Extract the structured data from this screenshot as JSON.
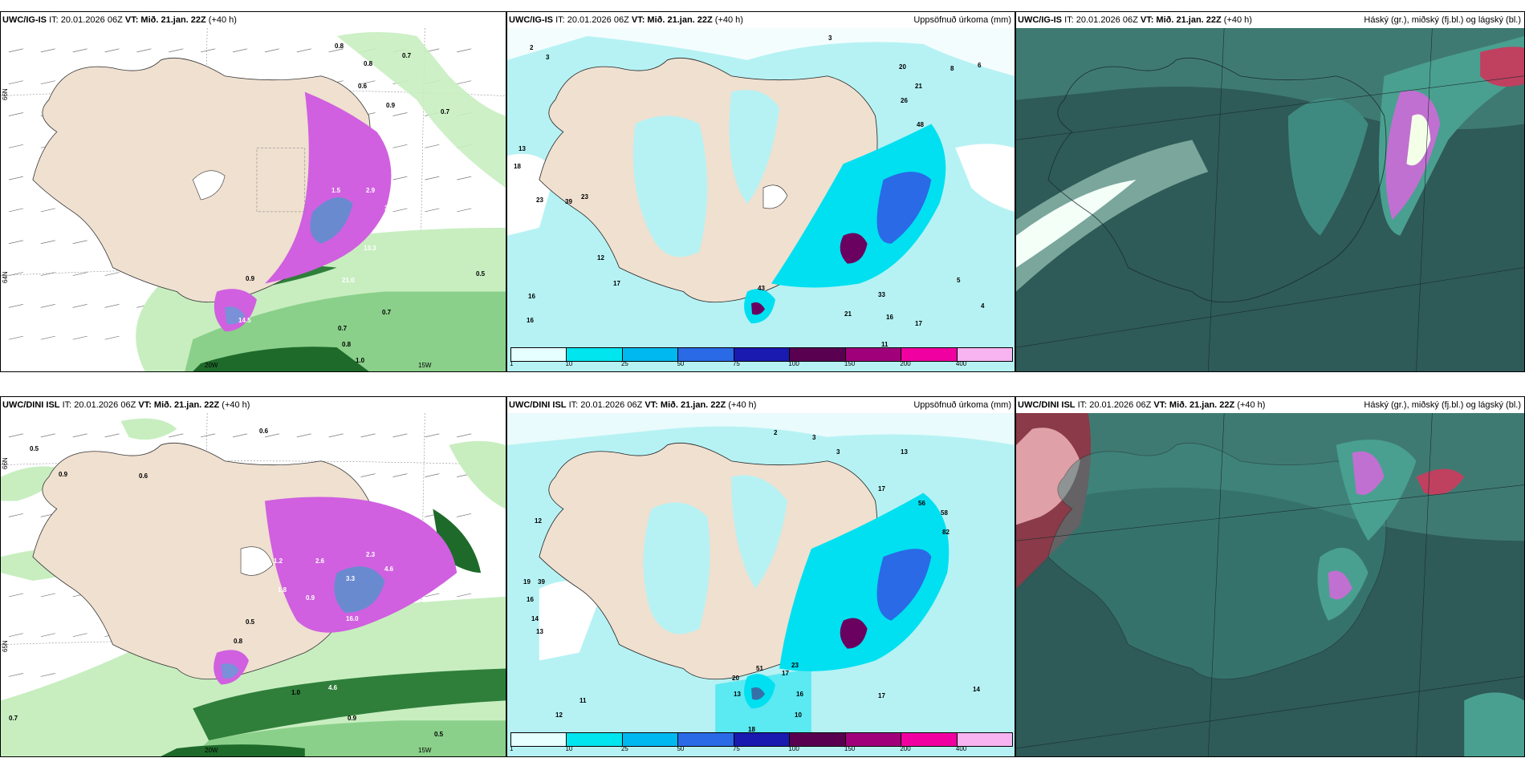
{
  "panels": {
    "top_left": {
      "model": "UWC/IG-IS",
      "it": "IT: 20.01.2026 06Z",
      "vt_label": "VT:",
      "vt": "Mið. 21.jan. 22Z",
      "lead": "(+40 h)",
      "right_title": ""
    },
    "top_mid": {
      "model": "UWC/IG-IS",
      "it": "IT: 20.01.2026 06Z",
      "vt_label": "VT:",
      "vt": "Mið. 21.jan. 22Z",
      "lead": "(+40 h)",
      "right_title": "Uppsöfnuð úrkoma (mm)"
    },
    "top_right": {
      "model": "UWC/IG-IS",
      "it": "IT: 20.01.2026 06Z",
      "vt_label": "VT:",
      "vt": "Mið. 21.jan. 22Z",
      "lead": "(+40 h)",
      "right_title": "Háský (gr.), miðský (fj.bl.) og lágský (bl.)"
    },
    "bot_left": {
      "model": "UWC/DINI ISL",
      "it": "IT: 20.01.2026 06Z",
      "vt_label": "VT:",
      "vt": "Mið. 21.jan. 22Z",
      "lead": "(+40 h)",
      "right_title": ""
    },
    "bot_mid": {
      "model": "UWC/DINI ISL",
      "it": "IT: 20.01.2026 06Z",
      "vt_label": "VT:",
      "vt": "Mið. 21.jan. 22Z",
      "lead": "(+40 h)",
      "right_title": "Uppsöfnuð úrkoma (mm)"
    },
    "bot_right": {
      "model": "UWC/DINI ISL",
      "it": "IT: 20.01.2026 06Z",
      "vt_label": "VT:",
      "vt": "Mið. 21.jan. 22Z",
      "lead": "(+40 h)",
      "right_title": "Háský (gr.), miðský (fj.bl.) og lágský (bl.)"
    }
  },
  "axis_labels": {
    "lon_20w": "20W",
    "lon_15w": "15W",
    "lat_66n": "66N",
    "lat_65n": "65N",
    "lat_64n": "64N"
  },
  "colorbar": {
    "ticks": [
      "1",
      "10",
      "25",
      "50",
      "75",
      "100",
      "150",
      "200",
      "400"
    ],
    "colors": [
      "#e6ffff",
      "#00e5ee",
      "#00b8f0",
      "#2a6ae6",
      "#1a1ab0",
      "#5a0050",
      "#a0007a",
      "#f000a0",
      "#f7b4f0"
    ]
  },
  "map_colors": {
    "land": "#efe0d0",
    "sea_white": "#ffffff",
    "precip_light": "#b6f2f4",
    "precip_mid": "#00e0f0",
    "precip_heavy": "#2a6ae6",
    "precip_max": "#6a0060",
    "green_light": "#c8eec0",
    "green_dark": "#1e6a2a",
    "magenta": "#d060e0",
    "cloud_dark": "#2e5a58",
    "cloud_teal": "#3f8a80"
  },
  "top_left_values": [
    "0.8",
    "0.8",
    "0.7",
    "0.6",
    "0.9",
    "0.7",
    "1.5",
    "2.9",
    "3.4",
    "0.9",
    "0.5",
    "0.7",
    "1.0",
    "0.8",
    "0.7",
    "13.3",
    "14.5",
    "21.0"
  ],
  "top_mid_values": [
    "2",
    "3",
    "3",
    "20",
    "8",
    "6",
    "21",
    "26",
    "48",
    "13",
    "18",
    "23",
    "39",
    "23",
    "16",
    "16",
    "12",
    "17",
    "43",
    "33",
    "21",
    "16",
    "17",
    "11",
    "5",
    "4"
  ],
  "bot_left_values": [
    "0.6",
    "0.5",
    "0.9",
    "0.6",
    "1.2",
    "2.6",
    "2.3",
    "3.3",
    "4.6",
    "1.8",
    "0.9",
    "0.5",
    "0.8",
    "1.0",
    "4.6",
    "0.7",
    "0.9",
    "0.5",
    "16.0"
  ],
  "bot_mid_values": [
    "2",
    "3",
    "3",
    "13",
    "17",
    "56",
    "58",
    "82",
    "19",
    "39",
    "12",
    "16",
    "14",
    "13",
    "51",
    "20",
    "13",
    "17",
    "23",
    "16",
    "18",
    "10",
    "12",
    "11",
    "17",
    "14"
  ]
}
